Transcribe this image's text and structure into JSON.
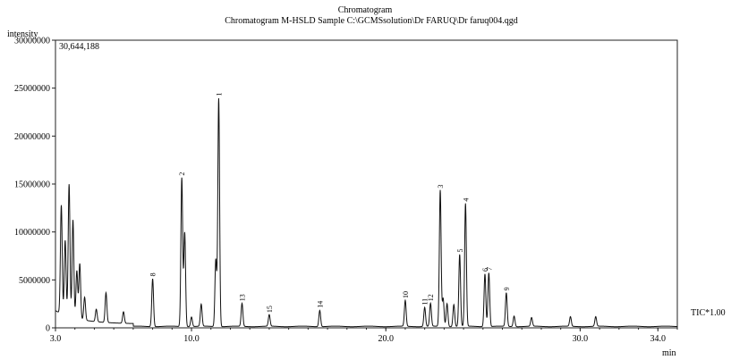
{
  "chart_data": {
    "type": "line",
    "title": "Chromatogram",
    "subtitle": "Chromatogram M-HSLD Sample C:\\GCMSsolution\\Dr FARUQ\\Dr faruq004.qgd",
    "ylabel": "intensity",
    "xlabel": "min",
    "max_intensity_label": "30,644,188",
    "trace_label": "TIC*1.00",
    "xlim": [
      3.0,
      35.0
    ],
    "ylim": [
      0,
      30000000
    ],
    "yticks": [
      {
        "value": 0,
        "label": "0"
      },
      {
        "value": 5000000,
        "label": "5000000"
      },
      {
        "value": 10000000,
        "label": "10000000"
      },
      {
        "value": 15000000,
        "label": "15000000"
      },
      {
        "value": 20000000,
        "label": "20000000"
      },
      {
        "value": 25000000,
        "label": "25000000"
      },
      {
        "value": 30000000,
        "label": "30000000"
      }
    ],
    "xticks": [
      {
        "value": 3.0,
        "label": "3.0"
      },
      {
        "value": 10.0,
        "label": "10.0"
      },
      {
        "value": 20.0,
        "label": "20.0"
      },
      {
        "value": 30.0,
        "label": "30.0"
      },
      {
        "value": 34.0,
        "label": "34.0"
      }
    ],
    "labeled_peaks": [
      {
        "label": "8",
        "x": 8.0,
        "y": 5000000
      },
      {
        "label": "2",
        "x": 9.5,
        "y": 15500000
      },
      {
        "label": "1",
        "x": 11.4,
        "y": 23800000
      },
      {
        "label": "13",
        "x": 12.6,
        "y": 2400000
      },
      {
        "label": "15",
        "x": 14.0,
        "y": 1200000
      },
      {
        "label": "14",
        "x": 16.6,
        "y": 1700000
      },
      {
        "label": "10",
        "x": 21.0,
        "y": 2700000
      },
      {
        "label": "11",
        "x": 22.0,
        "y": 2000000
      },
      {
        "label": "12",
        "x": 22.3,
        "y": 2400000
      },
      {
        "label": "3",
        "x": 22.8,
        "y": 14200000
      },
      {
        "label": "5",
        "x": 23.8,
        "y": 7500000
      },
      {
        "label": "4",
        "x": 24.1,
        "y": 12800000
      },
      {
        "label": "6",
        "x": 25.1,
        "y": 5500000
      },
      {
        "label": "7",
        "x": 25.3,
        "y": 5600000
      },
      {
        "label": "9",
        "x": 26.2,
        "y": 3500000
      }
    ],
    "unlabeled_peaks": [
      {
        "x": 3.3,
        "y": 11300000
      },
      {
        "x": 3.5,
        "y": 7800000
      },
      {
        "x": 3.7,
        "y": 13800000
      },
      {
        "x": 3.9,
        "y": 10200000
      },
      {
        "x": 4.1,
        "y": 5000000
      },
      {
        "x": 4.25,
        "y": 5800000
      },
      {
        "x": 4.5,
        "y": 2400000
      },
      {
        "x": 5.1,
        "y": 1300000
      },
      {
        "x": 5.6,
        "y": 3100000
      },
      {
        "x": 6.5,
        "y": 1200000
      },
      {
        "x": 9.65,
        "y": 9800000
      },
      {
        "x": 10.0,
        "y": 1000000
      },
      {
        "x": 10.5,
        "y": 2300000
      },
      {
        "x": 11.25,
        "y": 7000000
      },
      {
        "x": 22.95,
        "y": 2900000
      },
      {
        "x": 23.15,
        "y": 2400000
      },
      {
        "x": 23.5,
        "y": 2300000
      },
      {
        "x": 26.6,
        "y": 1100000
      },
      {
        "x": 27.5,
        "y": 900000
      },
      {
        "x": 29.5,
        "y": 1000000
      },
      {
        "x": 30.8,
        "y": 1000000
      }
    ]
  }
}
